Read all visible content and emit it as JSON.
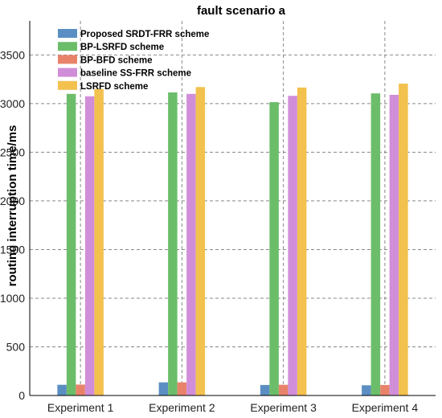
{
  "chart_data": {
    "type": "bar",
    "title": "fault scenario a",
    "xlabel": "",
    "ylabel": "routing interruption time/ms",
    "categories": [
      "Experiment 1",
      "Experiment 2",
      "Experiment 3",
      "Experiment 4"
    ],
    "ylim": [
      0,
      3850
    ],
    "yticks": [
      0,
      500,
      1000,
      1500,
      2000,
      2500,
      3000,
      3500
    ],
    "grid": true,
    "legend_position": "top-left",
    "series": [
      {
        "name": "Proposed SRDT-FRR scheme",
        "color": "#5b8fc3",
        "values": [
          110,
          135,
          108,
          105
        ]
      },
      {
        "name": "BP-LSRFD scheme",
        "color": "#6cbd6a",
        "values": [
          3100,
          3115,
          3015,
          3105
        ]
      },
      {
        "name": "BP-BFD scheme",
        "color": "#e8836a",
        "values": [
          112,
          135,
          110,
          108
        ]
      },
      {
        "name": "baseline SS-FRR scheme",
        "color": "#d18ed8",
        "values": [
          3075,
          3100,
          3080,
          3090
        ]
      },
      {
        "name": "LSRFD scheme",
        "color": "#f2c14e",
        "values": [
          3150,
          3170,
          3165,
          3205
        ]
      }
    ]
  }
}
